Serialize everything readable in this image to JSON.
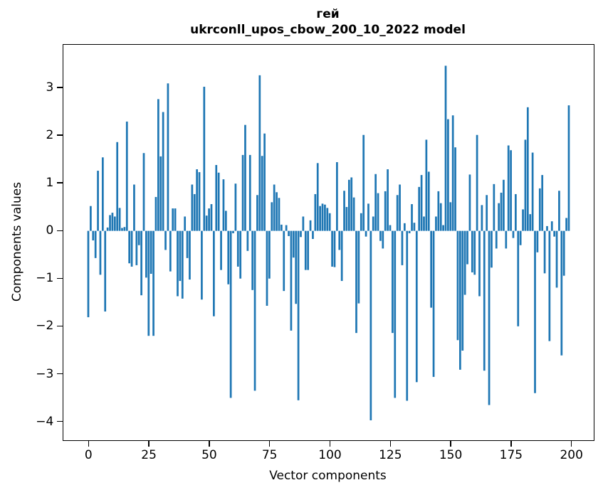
{
  "title": {
    "line1": "гей",
    "line2": "ukrconll_upos_cbow_200_10_2022 model"
  },
  "axes": {
    "xlabel": "Vector components",
    "ylabel": "Components values"
  },
  "chart_data": {
    "type": "bar",
    "title": "гей\nukrconll_upos_cbow_200_10_2022 model",
    "xlabel": "Vector components",
    "ylabel": "Components values",
    "bar_color": "#1f77b4",
    "n_bars": 200,
    "x_ticks": [
      0,
      25,
      50,
      75,
      100,
      125,
      150,
      175,
      200
    ],
    "y_ticks": [
      3,
      2,
      1,
      0,
      -1,
      -2,
      -3,
      -4
    ],
    "xlim": [
      -10.4,
      209.4
    ],
    "ylim": [
      -4.35,
      3.9
    ],
    "grid": false,
    "legend": null,
    "values": [
      -1.81,
      0.52,
      -0.2,
      -0.57,
      1.26,
      -0.92,
      1.54,
      -1.69,
      0.07,
      0.33,
      0.38,
      0.3,
      1.86,
      0.48,
      0.06,
      0.08,
      2.29,
      -0.68,
      -0.75,
      0.97,
      -0.72,
      -0.3,
      -1.35,
      1.63,
      -0.98,
      -2.2,
      -0.9,
      -2.2,
      0.71,
      2.76,
      1.56,
      2.49,
      -0.4,
      3.09,
      -0.85,
      0.47,
      0.47,
      -1.37,
      -1.05,
      -1.42,
      0.3,
      -0.57,
      -1.02,
      0.97,
      0.77,
      1.29,
      1.23,
      -1.44,
      3.02,
      0.32,
      0.47,
      0.56,
      -1.79,
      1.38,
      1.22,
      -0.82,
      1.08,
      0.42,
      -1.12,
      -3.5,
      -0.05,
      0.99,
      -0.75,
      -1.0,
      1.59,
      2.22,
      -0.42,
      1.59,
      -1.24,
      -3.35,
      0.75,
      3.26,
      1.57,
      2.04,
      -1.57,
      -1.0,
      0.6,
      0.97,
      0.81,
      0.69,
      0.13,
      -1.26,
      0.12,
      -0.11,
      -2.09,
      -0.56,
      -1.53,
      -3.55,
      -0.13,
      0.3,
      -0.82,
      -0.82,
      0.22,
      -0.17,
      0.77,
      1.42,
      0.52,
      0.57,
      0.55,
      0.48,
      0.37,
      -0.75,
      -0.76,
      1.44,
      -0.4,
      -1.05,
      0.84,
      0.5,
      1.07,
      1.12,
      0.7,
      -2.14,
      -1.52,
      0.37,
      2.01,
      -0.12,
      0.57,
      -3.97,
      0.3,
      1.19,
      0.79,
      -0.21,
      -0.37,
      0.83,
      1.29,
      0.12,
      -2.14,
      -3.5,
      0.75,
      0.97,
      -0.72,
      0.16,
      -3.56,
      -0.05,
      0.56,
      0.17,
      -3.17,
      0.92,
      1.17,
      0.3,
      1.91,
      1.24,
      -1.61,
      -3.06,
      0.3,
      0.83,
      0.58,
      0.12,
      3.46,
      2.34,
      0.6,
      2.42,
      1.75,
      -2.29,
      -2.91,
      -2.51,
      -1.34,
      -0.7,
      1.18,
      -0.87,
      -0.92,
      2.01,
      -1.37,
      0.54,
      -2.93,
      0.75,
      -3.65,
      -0.77,
      0.98,
      -0.37,
      0.58,
      0.8,
      1.07,
      -0.37,
      1.79,
      1.69,
      -0.15,
      0.77,
      -2.0,
      -0.3,
      0.45,
      1.91,
      2.59,
      0.35,
      1.64,
      -3.4,
      -0.45,
      0.89,
      1.17,
      -0.89,
      0.1,
      -2.31,
      0.2,
      -0.12,
      -1.19,
      0.84,
      -2.61,
      -0.94,
      0.27,
      2.63
    ]
  }
}
